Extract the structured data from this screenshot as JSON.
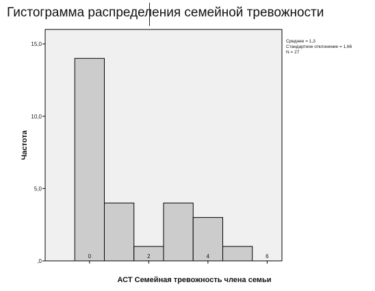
{
  "chart_data": {
    "type": "bar",
    "title": "Гистограмма распределения семейной тревожности",
    "xlabel": "АСТ Семейная тревожность члена семьи",
    "ylabel": "Частота",
    "bins": [
      {
        "from": -0.5,
        "to": 0.5,
        "value": 14
      },
      {
        "from": 0.5,
        "to": 1.5,
        "value": 4
      },
      {
        "from": 1.5,
        "to": 2.5,
        "value": 1
      },
      {
        "from": 2.5,
        "to": 3.5,
        "value": 4
      },
      {
        "from": 3.5,
        "to": 4.5,
        "value": 3
      },
      {
        "from": 4.5,
        "to": 5.5,
        "value": 1
      }
    ],
    "xlim": [
      -1.5,
      6.5
    ],
    "ylim": [
      0,
      16
    ],
    "xticks": [
      {
        "value": 0,
        "label": "0"
      },
      {
        "value": 2,
        "label": "2"
      },
      {
        "value": 4,
        "label": "4"
      },
      {
        "value": 6,
        "label": "6"
      }
    ],
    "yticks": [
      {
        "value": 0,
        "label": ",0"
      },
      {
        "value": 5,
        "label": "5,0"
      },
      {
        "value": 10,
        "label": "10,0"
      },
      {
        "value": 15,
        "label": "15,0"
      }
    ],
    "stats": {
      "mean": "Среднее = 1,3",
      "std": "Стандартное отклонение = 1,66",
      "n": "N = 27"
    },
    "bar_color": "#cccccc",
    "plot_background": "#f0f0f0",
    "grid": false,
    "legend_position": "right"
  }
}
